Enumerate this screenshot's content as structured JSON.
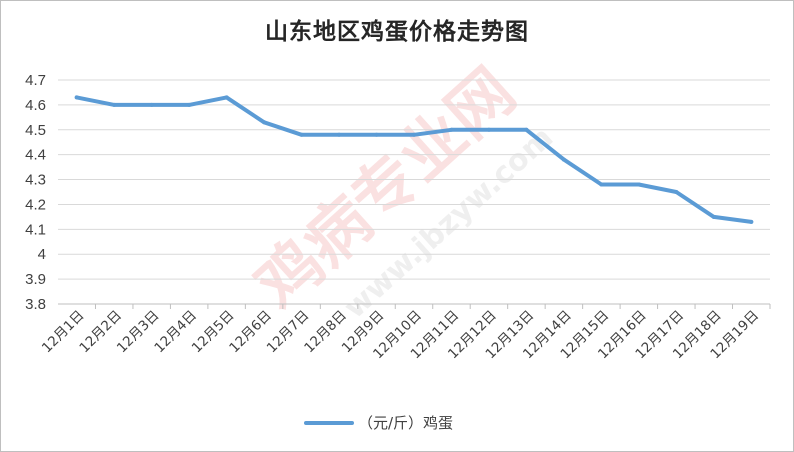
{
  "chart_data": {
    "type": "line",
    "title": "山东地区鸡蛋价格走势图",
    "categories": [
      "12月1日",
      "12月2日",
      "12月3日",
      "12月4日",
      "12月5日",
      "12月6日",
      "12月7日",
      "12月8日",
      "12月9日",
      "12月10日",
      "12月11日",
      "12月12日",
      "12月13日",
      "12月14日",
      "12月15日",
      "12月16日",
      "12月17日",
      "12月18日",
      "12月19日"
    ],
    "series": [
      {
        "name": "（元/斤）鸡蛋",
        "color": "#5b9bd5",
        "values": [
          4.63,
          4.6,
          4.6,
          4.6,
          4.63,
          4.53,
          4.48,
          4.48,
          4.48,
          4.48,
          4.5,
          4.5,
          4.5,
          4.38,
          4.28,
          4.28,
          4.25,
          4.15,
          4.13
        ]
      }
    ],
    "ylim": [
      3.8,
      4.7
    ],
    "yticks": [
      "3.8",
      "3.9",
      "4",
      "4.1",
      "4.2",
      "4.3",
      "4.4",
      "4.5",
      "4.6",
      "4.7"
    ],
    "grid": true,
    "legend_position": "bottom"
  },
  "watermark": {
    "text": "鸡病专业网",
    "url": "www.jbzyw.com"
  }
}
